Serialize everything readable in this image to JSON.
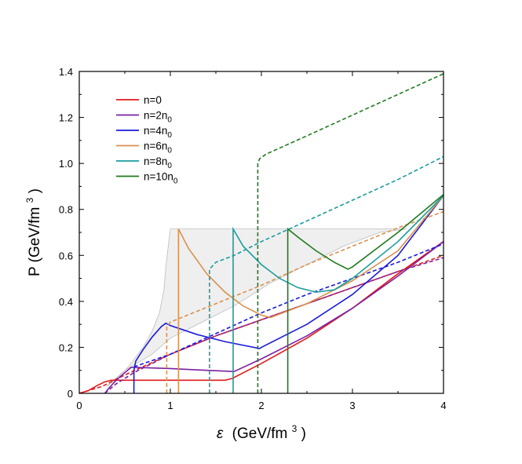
{
  "chart_data": {
    "type": "line",
    "xlabel": {
      "symbol": "ε",
      "unit_pre": "(GeV/fm",
      "unit_exp": "3",
      "unit_post": ")"
    },
    "ylabel": {
      "main": "P (GeV/fm",
      "exp": "3",
      "post": ")"
    },
    "xlim": [
      0,
      4
    ],
    "ylim": [
      0,
      1.4
    ],
    "xticks": [
      0,
      1,
      2,
      3,
      4
    ],
    "yticks": [
      0,
      0.2,
      0.4,
      0.6,
      0.8,
      1.0,
      1.2,
      1.4
    ],
    "xtick_labels": [
      "0",
      "1",
      "2",
      "3",
      "4"
    ],
    "ytick_labels": [
      "0",
      "0.2",
      "0.4",
      "0.6",
      "0.8",
      "1.0",
      "1.2",
      "1.4"
    ],
    "grid": false,
    "legend_position": "top-left",
    "shaded_region": {
      "color": "#efefef",
      "edge": "#bdbdbd",
      "boundary": [
        [
          0.3,
          0.03
        ],
        [
          0.5,
          0.1
        ],
        [
          0.8,
          0.17
        ],
        [
          1.0,
          0.24
        ],
        [
          1.3,
          0.3
        ],
        [
          1.7,
          0.38
        ],
        [
          2.1,
          0.48
        ],
        [
          2.5,
          0.56
        ],
        [
          2.9,
          0.64
        ],
        [
          3.3,
          0.7
        ],
        [
          3.6,
          0.715
        ],
        [
          3.6,
          0.715
        ],
        [
          1.0,
          0.715
        ],
        [
          0.98,
          0.65
        ],
        [
          0.95,
          0.55
        ],
        [
          0.93,
          0.45
        ],
        [
          0.88,
          0.35
        ],
        [
          0.8,
          0.27
        ],
        [
          0.7,
          0.2
        ],
        [
          0.55,
          0.12
        ],
        [
          0.4,
          0.06
        ],
        [
          0.3,
          0.03
        ]
      ]
    },
    "series": [
      {
        "name_main": "n=0",
        "name_sub": "",
        "color": "#e31a1c",
        "solid": [
          [
            0,
            0
          ],
          [
            0.1,
            0.012
          ],
          [
            0.2,
            0.035
          ],
          [
            0.28,
            0.05
          ],
          [
            0.35,
            0.057
          ],
          [
            0.5,
            0.057
          ],
          [
            1.0,
            0.057
          ],
          [
            1.6,
            0.057
          ],
          [
            1.68,
            0.065
          ],
          [
            2.0,
            0.13
          ],
          [
            2.5,
            0.24
          ],
          [
            3.0,
            0.37
          ],
          [
            3.5,
            0.52
          ],
          [
            4.0,
            0.66
          ]
        ],
        "dashed": [
          [
            0,
            0
          ],
          [
            0.25,
            0.03
          ],
          [
            0.5,
            0.08
          ],
          [
            1.0,
            0.17
          ],
          [
            1.5,
            0.25
          ],
          [
            2.0,
            0.32
          ],
          [
            2.5,
            0.39
          ],
          [
            3.0,
            0.46
          ],
          [
            3.5,
            0.53
          ],
          [
            4.0,
            0.6
          ]
        ]
      },
      {
        "name_main": "n=2n",
        "name_sub": "0",
        "color": "#7b1fa2",
        "solid": [
          [
            0.28,
            0
          ],
          [
            0.32,
            0.02
          ],
          [
            0.4,
            0.055
          ],
          [
            0.5,
            0.09
          ],
          [
            0.57,
            0.113
          ],
          [
            0.62,
            0.113
          ],
          [
            1.0,
            0.108
          ],
          [
            1.4,
            0.1
          ],
          [
            1.7,
            0.095
          ],
          [
            2.0,
            0.15
          ],
          [
            2.5,
            0.25
          ],
          [
            3.0,
            0.37
          ],
          [
            3.5,
            0.51
          ],
          [
            4.0,
            0.66
          ]
        ],
        "dashed": [
          [
            0.28,
            0
          ],
          [
            0.4,
            0.04
          ],
          [
            0.6,
            0.09
          ],
          [
            1.0,
            0.17
          ],
          [
            1.5,
            0.25
          ],
          [
            2.0,
            0.32
          ],
          [
            2.5,
            0.39
          ],
          [
            3.0,
            0.46
          ],
          [
            3.5,
            0.53
          ],
          [
            4.0,
            0.59
          ]
        ]
      },
      {
        "name_main": "n=4n",
        "name_sub": "0",
        "color": "#1a1adb",
        "solid": [
          [
            0.6,
            0
          ],
          [
            0.6,
            0.1
          ],
          [
            0.62,
            0.14
          ],
          [
            0.7,
            0.19
          ],
          [
            0.8,
            0.245
          ],
          [
            0.9,
            0.29
          ],
          [
            0.95,
            0.305
          ],
          [
            1.0,
            0.295
          ],
          [
            1.3,
            0.255
          ],
          [
            1.6,
            0.225
          ],
          [
            1.98,
            0.195
          ],
          [
            2.0,
            0.2
          ],
          [
            2.5,
            0.3
          ],
          [
            3.0,
            0.43
          ],
          [
            3.5,
            0.6
          ],
          [
            4.0,
            0.86
          ]
        ],
        "dashed": [
          [
            0.6,
            0.115
          ],
          [
            1.0,
            0.17
          ],
          [
            1.5,
            0.26
          ],
          [
            2.0,
            0.35
          ],
          [
            2.5,
            0.43
          ],
          [
            3.0,
            0.5
          ],
          [
            3.5,
            0.57
          ],
          [
            4.0,
            0.65
          ]
        ]
      },
      {
        "name_main": "n=6n",
        "name_sub": "0",
        "color": "#d9914f",
        "solid": [
          [
            1.09,
            0
          ],
          [
            1.09,
            0.715
          ],
          [
            1.2,
            0.63
          ],
          [
            1.4,
            0.52
          ],
          [
            1.6,
            0.44
          ],
          [
            1.8,
            0.38
          ],
          [
            2.0,
            0.34
          ],
          [
            2.1,
            0.33
          ],
          [
            2.5,
            0.39
          ],
          [
            3.0,
            0.49
          ],
          [
            3.5,
            0.62
          ],
          [
            4.0,
            0.86
          ]
        ],
        "dashed": [
          [
            0.96,
            0
          ],
          [
            0.96,
            0.29
          ],
          [
            1.0,
            0.31
          ],
          [
            1.5,
            0.39
          ],
          [
            2.0,
            0.47
          ],
          [
            2.5,
            0.56
          ],
          [
            3.0,
            0.64
          ],
          [
            3.5,
            0.72
          ],
          [
            4.0,
            0.79
          ]
        ]
      },
      {
        "name_main": "n=8n",
        "name_sub": "0",
        "color": "#1a9d9d",
        "solid": [
          [
            1.69,
            0
          ],
          [
            1.69,
            0.715
          ],
          [
            1.8,
            0.64
          ],
          [
            2.0,
            0.56
          ],
          [
            2.2,
            0.5
          ],
          [
            2.4,
            0.46
          ],
          [
            2.6,
            0.44
          ],
          [
            2.8,
            0.45
          ],
          [
            3.0,
            0.5
          ],
          [
            3.5,
            0.66
          ],
          [
            4.0,
            0.86
          ]
        ],
        "dashed": [
          [
            1.43,
            0
          ],
          [
            1.43,
            0.54
          ],
          [
            1.5,
            0.57
          ],
          [
            1.7,
            0.6
          ],
          [
            2.0,
            0.66
          ],
          [
            2.5,
            0.75
          ],
          [
            3.0,
            0.84
          ],
          [
            3.5,
            0.93
          ],
          [
            4.0,
            1.03
          ]
        ]
      },
      {
        "name_main": "n=10n",
        "name_sub": "0",
        "color": "#1f7a1f",
        "solid": [
          [
            2.29,
            0
          ],
          [
            2.29,
            0.715
          ],
          [
            2.4,
            0.68
          ],
          [
            2.6,
            0.62
          ],
          [
            2.8,
            0.57
          ],
          [
            2.95,
            0.54
          ],
          [
            3.0,
            0.55
          ],
          [
            3.5,
            0.7
          ],
          [
            4.0,
            0.865
          ]
        ],
        "dashed": [
          [
            1.96,
            0
          ],
          [
            1.96,
            1.0
          ],
          [
            1.98,
            1.02
          ],
          [
            2.05,
            1.04
          ],
          [
            2.5,
            1.12
          ],
          [
            3.0,
            1.21
          ],
          [
            3.5,
            1.3
          ],
          [
            4.0,
            1.39
          ]
        ]
      }
    ]
  }
}
